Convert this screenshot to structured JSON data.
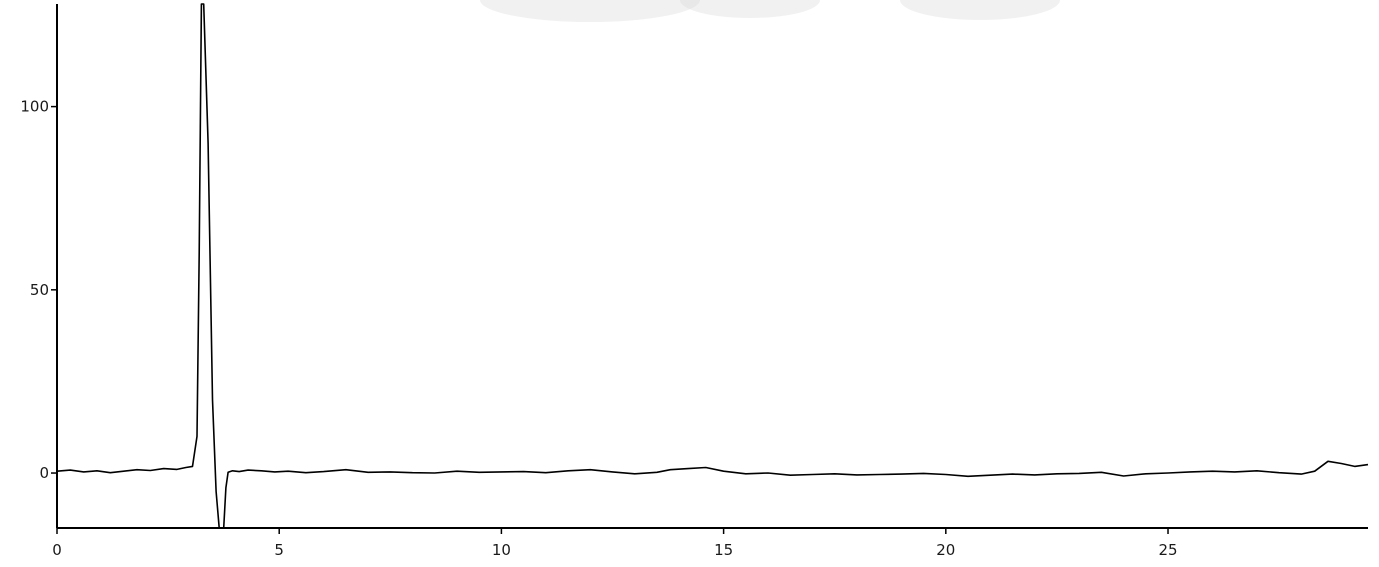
{
  "chart_data": {
    "type": "line",
    "title": "",
    "xlabel": "",
    "ylabel": "",
    "xlim": [
      0,
      29.5
    ],
    "ylim": [
      -15,
      128
    ],
    "grid": false,
    "legend": "none",
    "x_ticks": [
      0,
      5,
      10,
      15,
      20,
      25
    ],
    "x_tick_labels": [
      "0",
      "5",
      "10",
      "15",
      "20",
      "25"
    ],
    "y_ticks": [
      0,
      50,
      100
    ],
    "y_tick_labels": [
      "0",
      "50",
      "100"
    ],
    "line_color": "#000000",
    "series": [
      {
        "x": [
          0,
          0.3,
          0.6,
          0.9,
          1.2,
          1.5,
          1.8,
          2.1,
          2.4,
          2.7,
          2.9,
          3.05,
          3.15,
          3.2,
          3.25,
          3.3,
          3.4,
          3.5,
          3.58,
          3.65,
          3.7,
          3.75,
          3.8,
          3.85,
          3.95,
          4.1,
          4.3,
          4.6,
          4.9,
          5.2,
          5.6,
          6.0,
          6.5,
          7.0,
          7.5,
          8.0,
          8.5,
          9.0,
          9.5,
          10.0,
          10.5,
          11.0,
          11.5,
          12.0,
          12.5,
          13.0,
          13.5,
          13.8,
          14.2,
          14.6,
          15.0,
          15.5,
          16.0,
          16.5,
          17.0,
          17.5,
          18.0,
          18.5,
          19.0,
          19.5,
          20.0,
          20.5,
          21.0,
          21.5,
          22.0,
          22.5,
          23.0,
          23.5,
          24.0,
          24.5,
          25.0,
          25.5,
          26.0,
          26.5,
          27.0,
          27.5,
          28.0,
          28.3,
          28.6,
          28.9,
          29.2,
          29.5
        ],
        "values": [
          0.5,
          0.8,
          0.3,
          0.6,
          0.1,
          0.5,
          0.9,
          0.7,
          1.2,
          1.0,
          1.5,
          1.8,
          10,
          60,
          130,
          130,
          90,
          20,
          -5,
          -15,
          -16,
          -15,
          -4,
          0.2,
          0.6,
          0.4,
          0.8,
          0.6,
          0.3,
          0.5,
          0.1,
          0.4,
          0.9,
          0.2,
          0.3,
          0.1,
          0.0,
          0.5,
          0.2,
          0.3,
          0.4,
          0.1,
          0.6,
          0.9,
          0.3,
          -0.2,
          0.2,
          0.9,
          1.2,
          1.5,
          0.5,
          -0.2,
          0.0,
          -0.6,
          -0.4,
          -0.2,
          -0.5,
          -0.4,
          -0.3,
          -0.1,
          -0.4,
          -0.9,
          -0.6,
          -0.3,
          -0.5,
          -0.2,
          -0.1,
          0.2,
          -0.8,
          -0.2,
          0.0,
          0.3,
          0.5,
          0.3,
          0.6,
          0.1,
          -0.3,
          0.5,
          3.2,
          2.6,
          1.8,
          2.3
        ]
      }
    ]
  }
}
